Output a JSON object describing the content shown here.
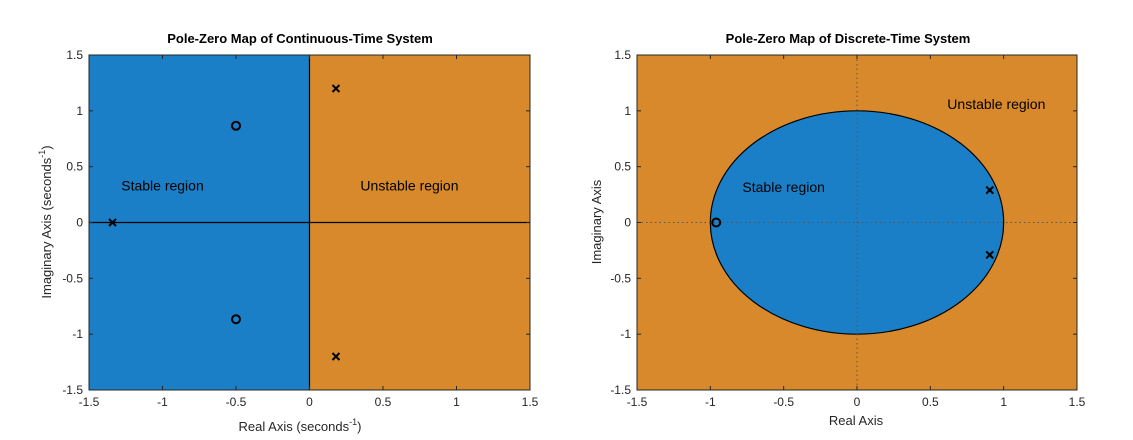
{
  "colors": {
    "stable": "#1a7fc6",
    "unstable": "#d8892b",
    "marker": "#000000",
    "axis": "#262626"
  },
  "chart_data": [
    {
      "type": "scatter",
      "title": "Pole-Zero Map of Continuous-Time System",
      "xlabel": "Real Axis (seconds",
      "ylabel": "Imaginary Axis (seconds",
      "unit_exponent": "-1",
      "xlim": [
        -1.5,
        1.5
      ],
      "ylim": [
        -1.5,
        1.5
      ],
      "xticks": [
        "-1.5",
        "-1",
        "-0.5",
        "0",
        "0.5",
        "1",
        "1.5"
      ],
      "yticks": [
        "-1.5",
        "-1",
        "-0.5",
        "0",
        "0.5",
        "1",
        "1.5"
      ],
      "xtick_values": [
        -1.5,
        -1,
        -0.5,
        0,
        0.5,
        1,
        1.5
      ],
      "ytick_values": [
        -1.5,
        -1,
        -0.5,
        0,
        0.5,
        1,
        1.5
      ],
      "stability_boundary": "imaginary-axis",
      "regions": [
        {
          "label": "Stable region",
          "x": -1.0,
          "y": 0.33
        },
        {
          "label": "Unstable region",
          "x": 0.68,
          "y": 0.33
        }
      ],
      "poles": [
        {
          "x": -1.34,
          "y": 0.0
        },
        {
          "x": 0.18,
          "y": 1.2
        },
        {
          "x": 0.18,
          "y": -1.2
        }
      ],
      "zeros": [
        {
          "x": -0.5,
          "y": 0.866
        },
        {
          "x": -0.5,
          "y": -0.866
        }
      ]
    },
    {
      "type": "scatter",
      "title": "Pole-Zero Map of Discrete-Time System",
      "xlabel": "Real Axis",
      "ylabel": "Imaginary Axis",
      "xlim": [
        -1.5,
        1.5
      ],
      "ylim": [
        -1.5,
        1.5
      ],
      "xticks": [
        "-1.5",
        "-1",
        "-0.5",
        "0",
        "0.5",
        "1",
        "1.5"
      ],
      "yticks": [
        "-1.5",
        "-1",
        "-0.5",
        "0",
        "0.5",
        "1",
        "1.5"
      ],
      "xtick_values": [
        -1.5,
        -1,
        -0.5,
        0,
        0.5,
        1,
        1.5
      ],
      "ytick_values": [
        -1.5,
        -1,
        -0.5,
        0,
        0.5,
        1,
        1.5
      ],
      "stability_boundary": "unit-circle",
      "regions": [
        {
          "label": "Stable region",
          "x": -0.5,
          "y": 0.32
        },
        {
          "label": "Unstable region",
          "x": 0.95,
          "y": 1.06
        }
      ],
      "poles": [
        {
          "x": 0.905,
          "y": 0.29
        },
        {
          "x": 0.905,
          "y": -0.29
        }
      ],
      "zeros": [
        {
          "x": -0.96,
          "y": 0.0
        }
      ]
    }
  ]
}
